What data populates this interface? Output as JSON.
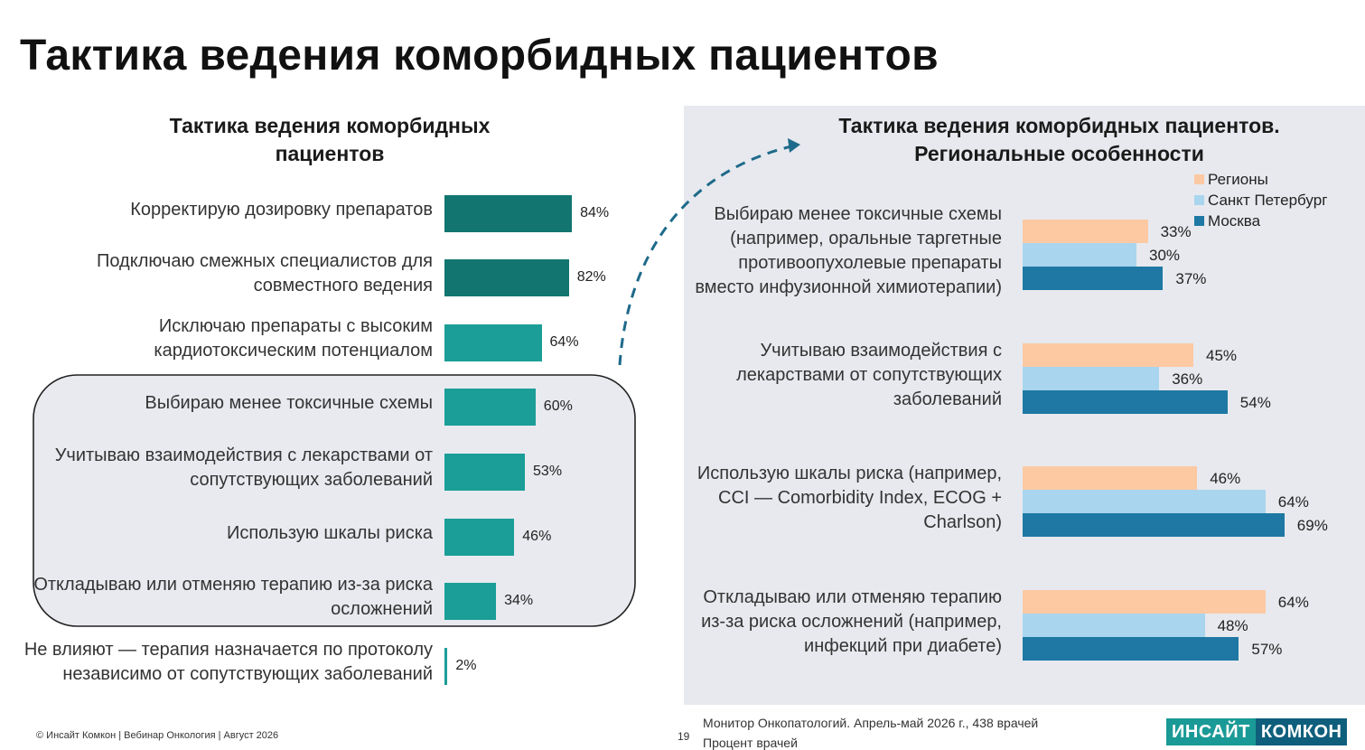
{
  "title": "Тактика ведения коморбидных пациентов",
  "chart_data": [
    {
      "type": "bar",
      "orientation": "horizontal",
      "title_lines": [
        "Тактика ведения коморбидных",
        "пациентов"
      ],
      "categories": [
        [
          "Корректирую дозировку препаратов"
        ],
        [
          "Подключаю смежных специалистов для",
          "совместного ведения"
        ],
        [
          "Исключаю препараты с высоким",
          "кардиотоксическим потенциалом"
        ],
        [
          "Выбираю менее токсичные схемы"
        ],
        [
          "Учитываю взаимодействия с лекарствами от",
          "сопутствующих заболеваний"
        ],
        [
          "Использую шкалы риска"
        ],
        [
          "Откладываю или отменяю терапию из-за риска",
          "осложнений"
        ],
        [
          "Не влияют — терапия назначается по протоколу",
          "независимо от сопутствующих заболеваний"
        ]
      ],
      "values": [
        84,
        82,
        64,
        60,
        53,
        46,
        34,
        2
      ],
      "value_labels": [
        "84%",
        "82%",
        "64%",
        "60%",
        "53%",
        "46%",
        "34%",
        "2%"
      ],
      "highlighted_rows": [
        3,
        4,
        5,
        6
      ],
      "colors": {
        "dark": "#127570",
        "light": "#1a9e97"
      },
      "xlim": [
        0,
        100
      ]
    },
    {
      "type": "bar",
      "orientation": "horizontal",
      "title_lines": [
        "Тактика ведения коморбидных пациентов.",
        "Региональные особенности"
      ],
      "categories": [
        [
          "Выбираю менее токсичные схемы",
          "(например, оральные таргетные",
          "противоопухолевые препараты",
          "вместо инфузионной химиотерапии)"
        ],
        [
          "Учитываю взаимодействия с",
          "лекарствами от сопутствующих",
          "заболеваний"
        ],
        [
          "Использую шкалы риска (например,",
          "CCI — Comorbidity Index, ECOG +",
          "Charlson)"
        ],
        [
          "Откладываю или отменяю терапию",
          "из-за риска осложнений (например,",
          "инфекций при диабете)"
        ]
      ],
      "series": [
        {
          "name": "Регионы",
          "color": "#fcc9a3",
          "values": [
            33,
            45,
            46,
            64
          ],
          "labels": [
            "33%",
            "45%",
            "46%",
            "64%"
          ]
        },
        {
          "name": "Санкт Петербург",
          "color": "#a9d5ee",
          "values": [
            30,
            36,
            64,
            48
          ],
          "labels": [
            "30%",
            "36%",
            "64%",
            "48%"
          ]
        },
        {
          "name": "Москва",
          "color": "#1e78a3",
          "values": [
            37,
            54,
            69,
            57
          ],
          "labels": [
            "37%",
            "54%",
            "69%",
            "57%"
          ]
        }
      ],
      "legend_position": "top-right",
      "xlim": [
        0,
        100
      ]
    }
  ],
  "footer": {
    "copyright": "© Инсайт Комкон | Вебинар Онкология | Август 2026",
    "page": "19",
    "source_line1": "Монитор Онкопатологий. Апрель-май 2026 г., 438 врачей",
    "source_line2": "Процент врачей"
  },
  "logo": {
    "part1": "ИНСАЙТ",
    "part2": "КОМКОН"
  }
}
